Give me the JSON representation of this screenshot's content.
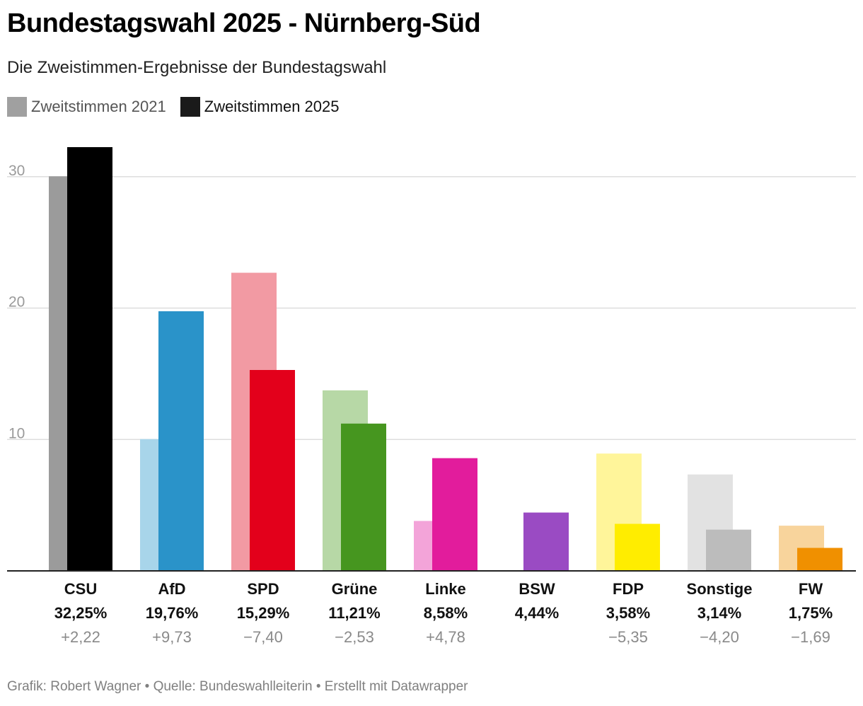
{
  "title": "Bundestagswahl 2025 - Nürnberg-Süd",
  "subtitle": "Die Zweistimmen-Ergebnisse der Bundestagswahl",
  "legend": [
    {
      "label": "Zweitstimmen 2021",
      "color": "#a0a0a0"
    },
    {
      "label": "Zweitstimmen 2025",
      "color": "#1a1a1a"
    }
  ],
  "footer": "Grafik: Robert Wagner • Quelle: Bundeswahlleiterin • Erstellt mit Datawrapper",
  "chart_data": {
    "type": "bar",
    "ylim": [
      0,
      32.25
    ],
    "yticks": [
      10,
      20,
      30
    ],
    "grid": true,
    "legend_position": "top-left",
    "series": [
      {
        "name": "Zweitstimmen 2021",
        "values": [
          30.03,
          10.03,
          22.69,
          13.74,
          3.8,
          null,
          8.93,
          7.34,
          3.44
        ]
      },
      {
        "name": "Zweitstimmen 2025",
        "values": [
          32.25,
          19.76,
          15.29,
          11.21,
          8.58,
          4.44,
          3.58,
          3.14,
          1.75
        ]
      }
    ],
    "categories": [
      {
        "party": "CSU",
        "value_label": "32,25%",
        "diff": "+2,22",
        "color2021": "#9b9b9b",
        "color2025": "#000000"
      },
      {
        "party": "AfD",
        "value_label": "19,76%",
        "diff": "+9,73",
        "color2021": "#a8d5ea",
        "color2025": "#2a93c9"
      },
      {
        "party": "SPD",
        "value_label": "15,29%",
        "diff": "−7,40",
        "color2021": "#f29aa3",
        "color2025": "#e3001b"
      },
      {
        "party": "Grüne",
        "value_label": "11,21%",
        "diff": "−2,53",
        "color2021": "#b7d8a6",
        "color2025": "#46961f"
      },
      {
        "party": "Linke",
        "value_label": "8,58%",
        "diff": "+4,78",
        "color2021": "#f3a4d9",
        "color2025": "#e21c9c"
      },
      {
        "party": "BSW",
        "value_label": "4,44%",
        "diff": "",
        "color2021": "#d4b0e8",
        "color2025": "#9a4bc3"
      },
      {
        "party": "FDP",
        "value_label": "3,58%",
        "diff": "−5,35",
        "color2021": "#fff59a",
        "color2025": "#ffed00"
      },
      {
        "party": "Sonstige",
        "value_label": "3,14%",
        "diff": "−4,20",
        "color2021": "#e2e2e2",
        "color2025": "#bcbcbc"
      },
      {
        "party": "FW",
        "value_label": "1,75%",
        "diff": "−1,69",
        "color2021": "#f8d49c",
        "color2025": "#f09000"
      }
    ]
  }
}
